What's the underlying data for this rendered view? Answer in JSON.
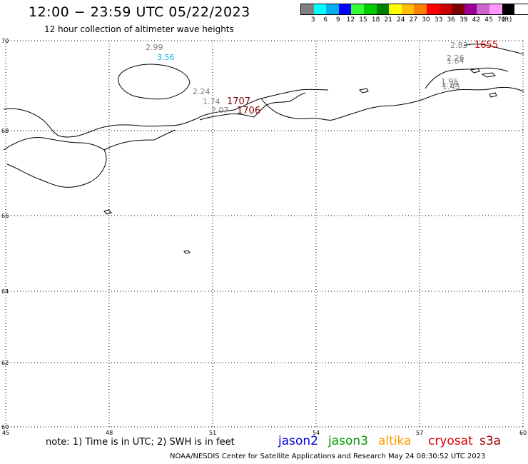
{
  "header": {
    "title": "12:00 − 23:59 UTC 05/22/2023",
    "subtitle": "12 hour collection of altimeter wave heights"
  },
  "legend": {
    "colors": [
      "#808080",
      "#00ffff",
      "#00b0f0",
      "#0000ff",
      "#33ff33",
      "#00cc00",
      "#008000",
      "#ffff00",
      "#ffc000",
      "#ff8000",
      "#ff0000",
      "#cc0000",
      "#800000",
      "#990099",
      "#cc66cc",
      "#ff99ff",
      "#000000"
    ],
    "labels": [
      "3",
      "6",
      "9",
      "12",
      "15",
      "18",
      "21",
      "24",
      "27",
      "30",
      "33",
      "36",
      "39",
      "42",
      "45",
      "70",
      "(ft)"
    ]
  },
  "map": {
    "lat_ticks": [
      "70",
      "68",
      "66",
      "64",
      "62",
      "60"
    ],
    "lon_ticks": [
      "45",
      "48",
      "51",
      "54",
      "57",
      "60"
    ],
    "observations": [
      {
        "text": "2.99",
        "color": "#808080"
      },
      {
        "text": "3.56",
        "color": "#00b0f0"
      },
      {
        "text": "2.24",
        "color": "#808080"
      },
      {
        "text": "1.74",
        "color": "#808080"
      },
      {
        "text": "2.07",
        "color": "#808080"
      },
      {
        "text": "1707",
        "color": "#800000"
      },
      {
        "text": "1706",
        "color": "#800000"
      },
      {
        "text": "2.83",
        "color": "#808080"
      },
      {
        "text": "1655",
        "color": "#cc0000"
      },
      {
        "text": "2.26",
        "color": "#808080"
      },
      {
        "text": "1.64",
        "color": "#808080"
      },
      {
        "text": "1.95",
        "color": "#808080"
      },
      {
        "text": "1.79",
        "color": "#808080"
      },
      {
        "text": "1.43",
        "color": "#808080"
      }
    ]
  },
  "footer": {
    "note": "note: 1) Time is in UTC; 2) SWH is in feet",
    "satellites": [
      {
        "name": "jason2",
        "color": "#0000dd"
      },
      {
        "name": "jason3",
        "color": "#009900"
      },
      {
        "name": "altika",
        "color": "#ff9900"
      },
      {
        "name": "cryosat",
        "color": "#dd0000"
      },
      {
        "name": "s3a",
        "color": "#990000"
      }
    ],
    "credit": "NOAA/NESDIS Center for Satellite Applications and Research    May 24 08:30:52 UTC 2023"
  }
}
